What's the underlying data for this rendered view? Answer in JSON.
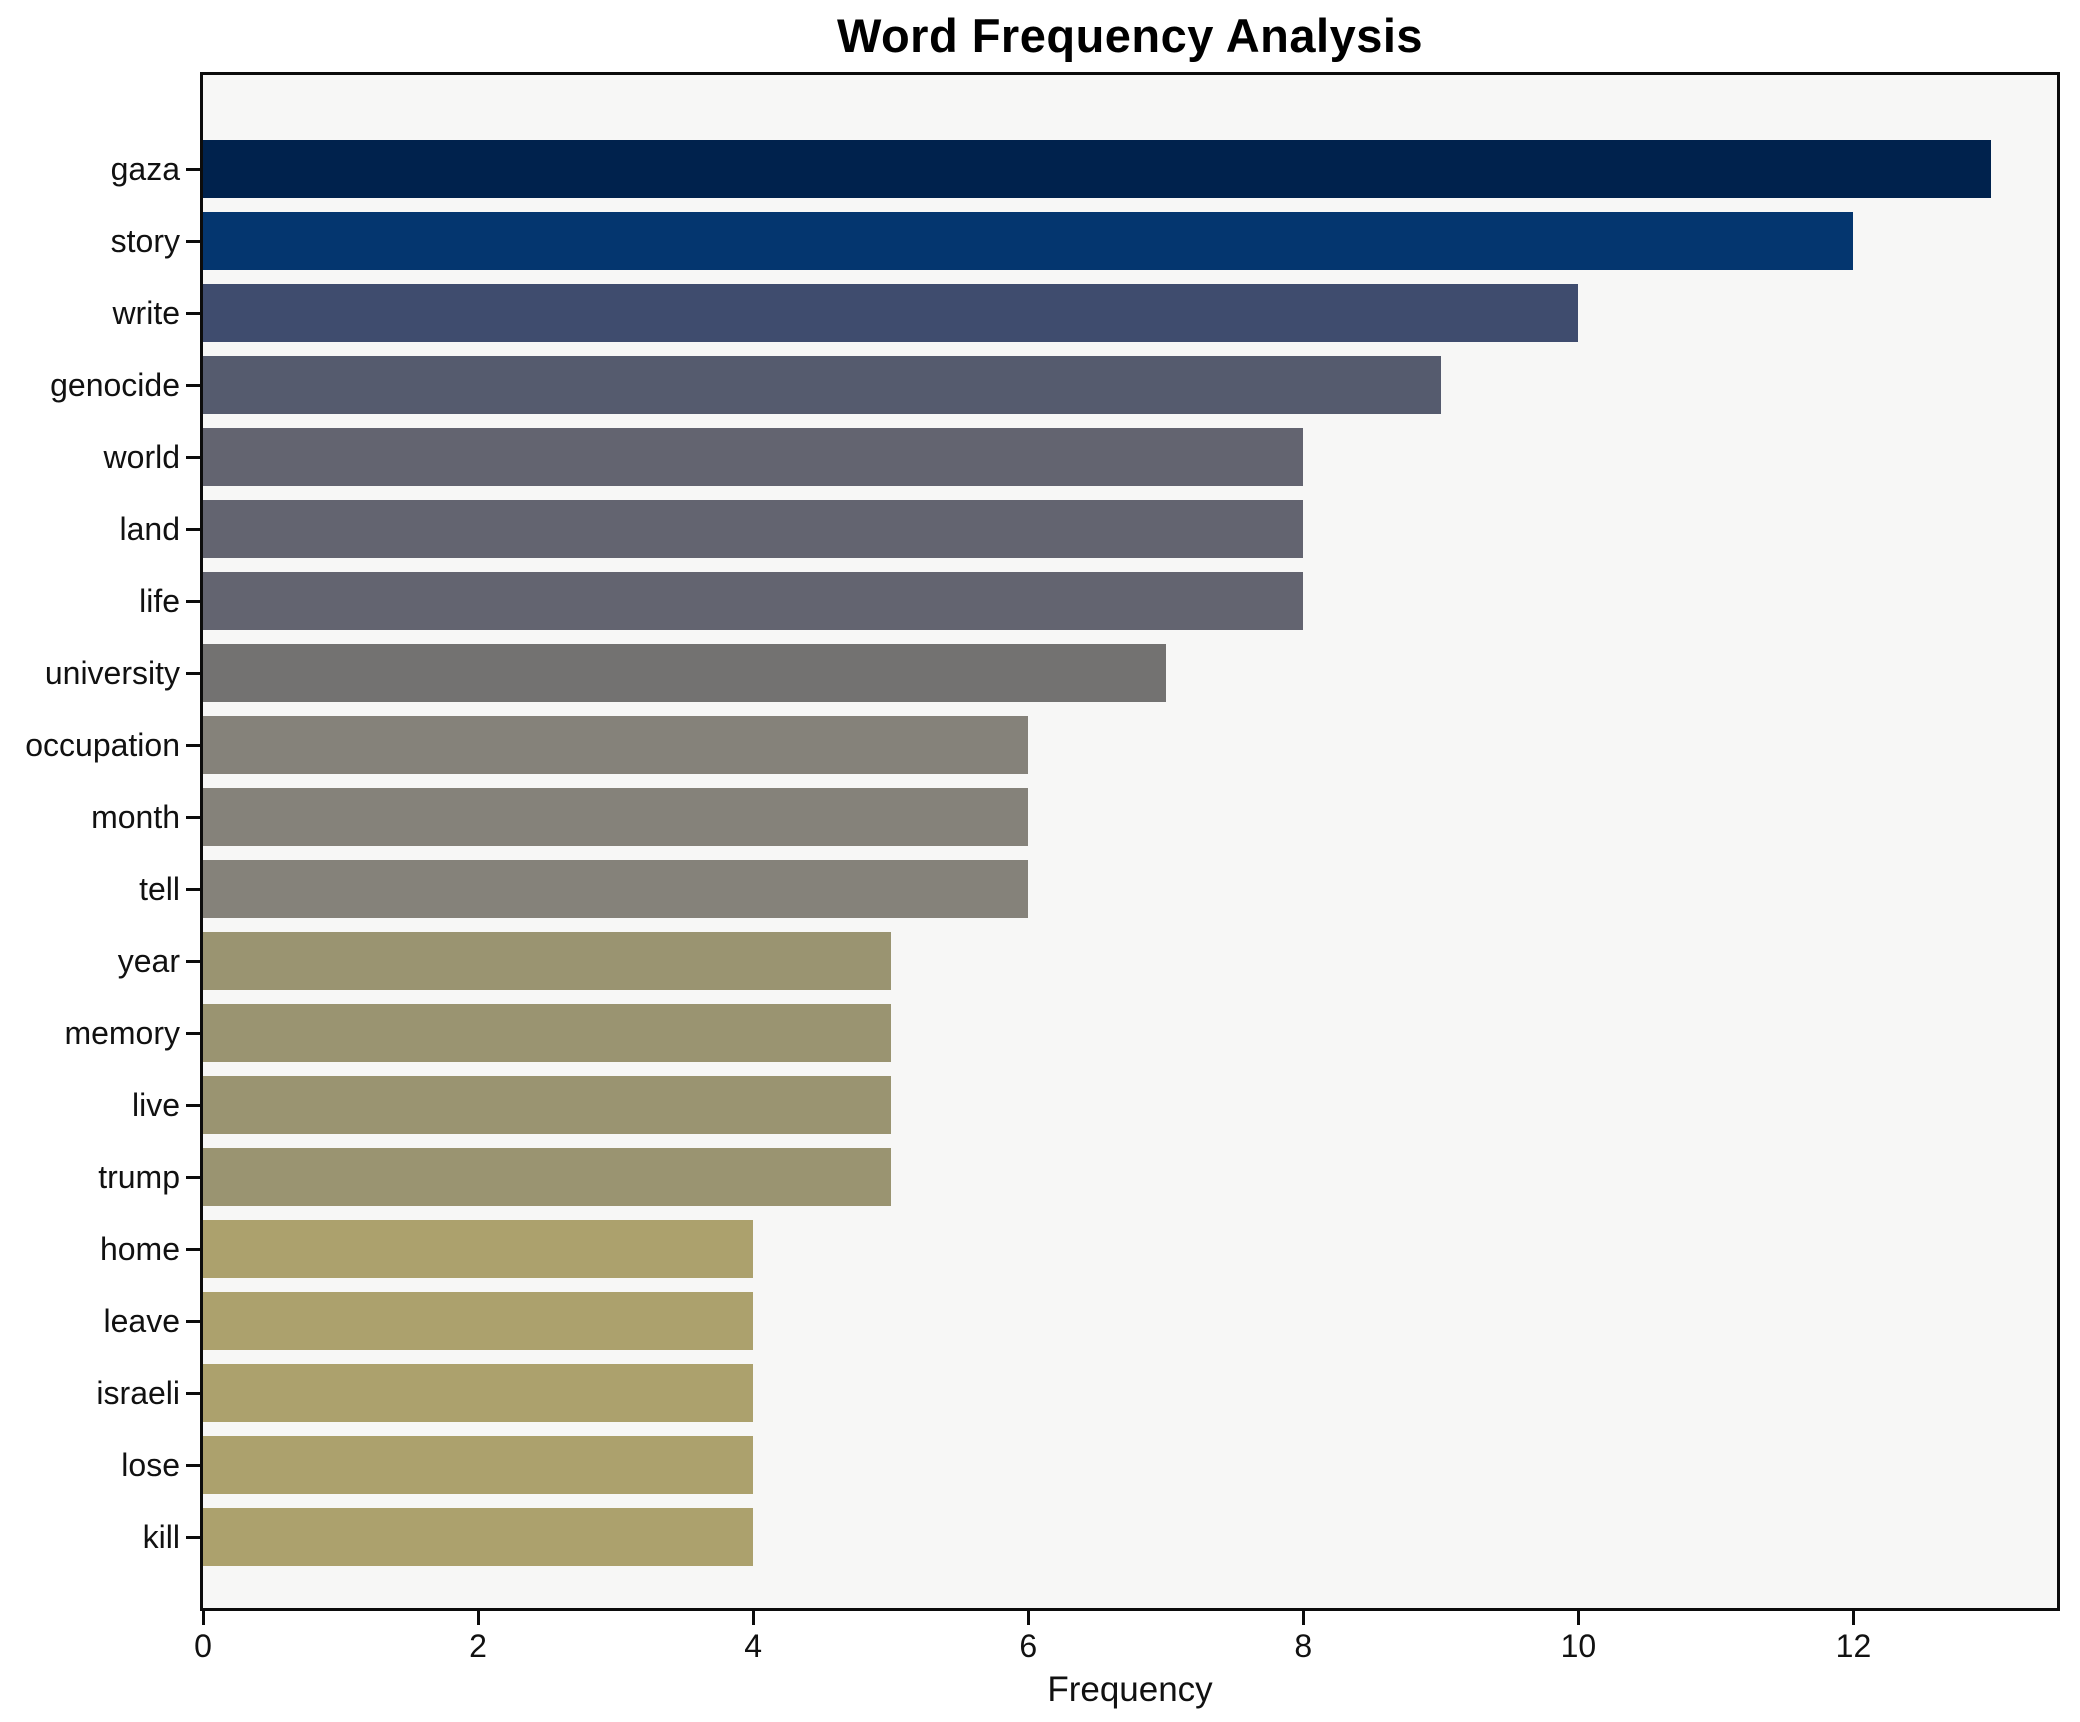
{
  "figure": {
    "background": "#ffffff",
    "plot_background": "#f7f7f6",
    "spine_color": "#0c0c0c",
    "text_color": "#111111",
    "title_color": "#000000"
  },
  "chart_data": {
    "type": "bar",
    "orientation": "horizontal",
    "title": "Word Frequency Analysis",
    "xlabel": "Frequency",
    "ylabel": "",
    "xlim": [
      0,
      13.48
    ],
    "x_ticks": [
      0,
      2,
      4,
      6,
      8,
      10,
      12
    ],
    "grid": false,
    "legend": false,
    "colormap": "cividis",
    "categories": [
      "gaza",
      "story",
      "write",
      "genocide",
      "world",
      "land",
      "life",
      "university",
      "occupation",
      "month",
      "tell",
      "year",
      "memory",
      "live",
      "trump",
      "home",
      "leave",
      "israeli",
      "lose",
      "kill"
    ],
    "values": [
      13,
      12,
      10,
      9,
      8,
      8,
      8,
      7,
      6,
      6,
      6,
      5,
      5,
      5,
      5,
      4,
      4,
      4,
      4,
      4
    ],
    "bar_colors": [
      "#00224d",
      "#04366f",
      "#3f4c6e",
      "#555b6e",
      "#636470",
      "#636470",
      "#636470",
      "#737271",
      "#85827a",
      "#85827a",
      "#85827a",
      "#9a9471",
      "#9a9471",
      "#9a9471",
      "#9a9471",
      "#aca16d",
      "#aca16d",
      "#aca16d",
      "#aca16d",
      "#aca16d"
    ]
  }
}
